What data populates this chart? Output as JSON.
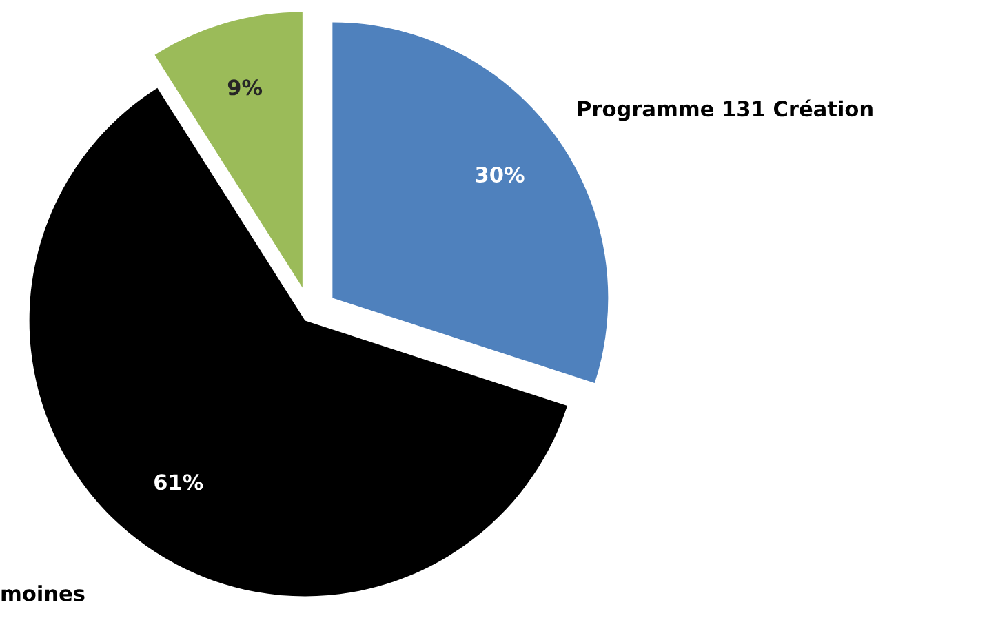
{
  "chart_data": {
    "type": "pie",
    "categories": [
      "Programme 131 Création",
      "moines",
      null
    ],
    "values": [
      30,
      61,
      9
    ],
    "colors": [
      "#4f81bd",
      "#000000",
      "#9bbb59"
    ],
    "value_labels": [
      "30%",
      "61%",
      "9%"
    ],
    "legend": false
  }
}
